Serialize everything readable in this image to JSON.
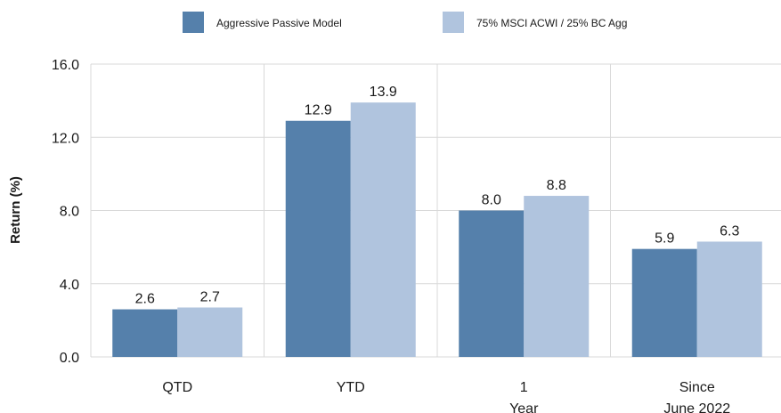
{
  "chart_data": {
    "type": "bar",
    "categories": [
      [
        "QTD"
      ],
      [
        "YTD"
      ],
      [
        "1",
        "Year"
      ],
      [
        "Since",
        "June 2022"
      ]
    ],
    "series": [
      {
        "name": "Aggressive Passive Model",
        "values": [
          2.6,
          12.9,
          8.0,
          5.9
        ],
        "labels": [
          "2.6",
          "12.9",
          "8.0",
          "5.9"
        ],
        "color": "#5580ab"
      },
      {
        "name": "75% MSCI ACWI / 25% BC Agg",
        "values": [
          2.7,
          13.9,
          8.8,
          6.3
        ],
        "labels": [
          "2.7",
          "13.9",
          "8.8",
          "6.3"
        ],
        "color": "#b0c4de"
      }
    ],
    "xlabel": "",
    "ylabel": "Return (%)",
    "ylim": [
      0,
      16
    ],
    "yticks": [
      0,
      4,
      8,
      12,
      16
    ],
    "ytick_labels": [
      "0.0",
      "4.0",
      "8.0",
      "12.0",
      "16.0"
    ],
    "grid": true,
    "legend_position": "top"
  }
}
